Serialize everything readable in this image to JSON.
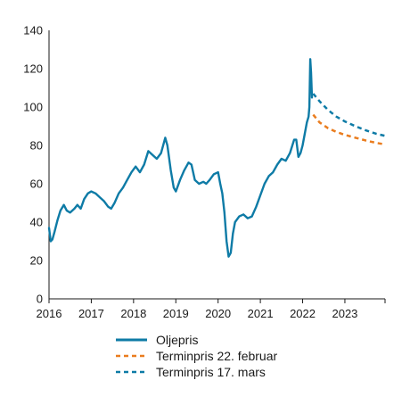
{
  "chart_data": {
    "type": "line",
    "title": "",
    "xlabel": "",
    "ylabel": "",
    "xlim": [
      2016.0,
      2023.95
    ],
    "ylim": [
      0,
      140
    ],
    "y_ticks": [
      "0",
      "20",
      "40",
      "60",
      "80",
      "100",
      "120",
      "140"
    ],
    "x_ticks": [
      "2016",
      "2017",
      "2018",
      "2019",
      "2020",
      "2021",
      "2022",
      "2023"
    ],
    "grid": false,
    "legend_position": "bottom",
    "series": [
      {
        "name": "Oljepris",
        "color": "#0e7ba6",
        "style": "solid",
        "x": [
          2016.0,
          2016.04,
          2016.08,
          2016.13,
          2016.2,
          2016.27,
          2016.35,
          2016.42,
          2016.5,
          2016.6,
          2016.67,
          2016.75,
          2016.83,
          2016.92,
          2017.0,
          2017.1,
          2017.2,
          2017.3,
          2017.4,
          2017.47,
          2017.55,
          2017.65,
          2017.75,
          2017.85,
          2017.95,
          2018.05,
          2018.15,
          2018.25,
          2018.35,
          2018.45,
          2018.55,
          2018.65,
          2018.75,
          2018.8,
          2018.88,
          2018.95,
          2019.0,
          2019.1,
          2019.2,
          2019.3,
          2019.37,
          2019.45,
          2019.55,
          2019.65,
          2019.72,
          2019.8,
          2019.9,
          2020.0,
          2020.05,
          2020.1,
          2020.15,
          2020.2,
          2020.25,
          2020.3,
          2020.35,
          2020.4,
          2020.5,
          2020.6,
          2020.7,
          2020.8,
          2020.9,
          2021.0,
          2021.1,
          2021.2,
          2021.3,
          2021.4,
          2021.5,
          2021.6,
          2021.7,
          2021.8,
          2021.85,
          2021.9,
          2021.95,
          2022.0,
          2022.05,
          2022.1,
          2022.14,
          2022.16,
          2022.18,
          2022.2,
          2022.22
        ],
        "values": [
          37,
          30,
          31,
          35,
          41,
          46,
          49,
          46,
          45,
          47,
          49,
          47,
          52,
          55,
          56,
          55,
          53,
          51,
          48,
          47,
          50,
          55,
          58,
          62,
          66,
          69,
          66,
          70,
          77,
          75,
          73,
          76,
          84,
          80,
          67,
          58,
          56,
          62,
          67,
          71,
          70,
          62,
          60,
          61,
          60,
          62,
          65,
          66,
          60,
          55,
          45,
          30,
          22,
          24,
          34,
          40,
          43,
          44,
          42,
          43,
          48,
          54,
          60,
          64,
          66,
          70,
          73,
          72,
          76,
          83,
          83,
          74,
          76,
          80,
          86,
          92,
          95,
          100,
          125,
          118,
          105
        ]
      },
      {
        "name": "Terminpris 22. februar",
        "color": "#ea7d1f",
        "style": "dashed",
        "x": [
          2022.25,
          2022.4,
          2022.6,
          2022.8,
          2023.0,
          2023.25,
          2023.5,
          2023.75,
          2023.95
        ],
        "values": [
          96,
          92,
          89,
          87,
          85.5,
          84,
          82.5,
          81.3,
          80.5
        ]
      },
      {
        "name": "Terminpris 17. mars",
        "color": "#0e7ba6",
        "style": "dashed",
        "x": [
          2022.25,
          2022.4,
          2022.6,
          2022.8,
          2023.0,
          2023.25,
          2023.5,
          2023.75,
          2023.95
        ],
        "values": [
          107,
          103,
          98.5,
          95,
          92.5,
          90,
          87.8,
          86,
          85
        ]
      }
    ]
  }
}
